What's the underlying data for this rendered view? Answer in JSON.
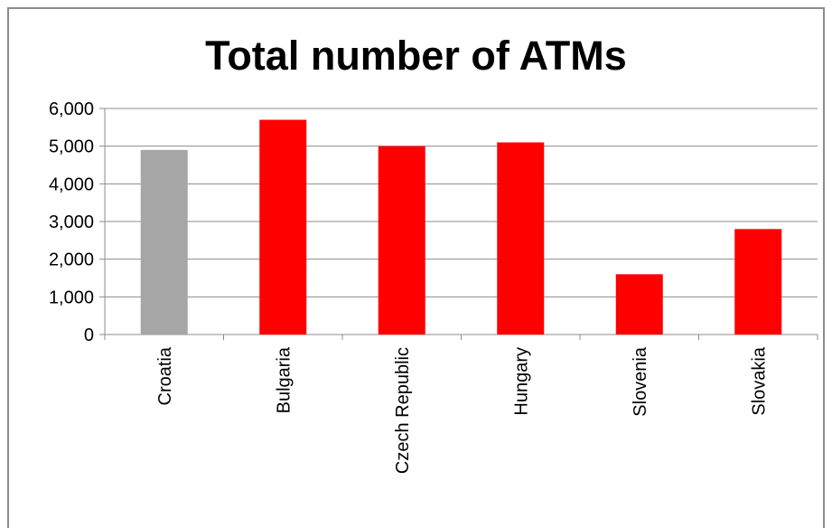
{
  "chart_data": {
    "type": "bar",
    "title": "Total number of ATMs",
    "categories": [
      "Croatia",
      "Bulgaria",
      "Czech Republic",
      "Hungary",
      "Slovenia",
      "Slovakia"
    ],
    "values": [
      4900,
      5700,
      5000,
      5100,
      1600,
      2800
    ],
    "colors": [
      "#a6a6a6",
      "#ff0000",
      "#ff0000",
      "#ff0000",
      "#ff0000",
      "#ff0000"
    ],
    "ylim": [
      0,
      6000
    ],
    "yticks": [
      0,
      1000,
      2000,
      3000,
      4000,
      5000,
      6000
    ],
    "ytick_labels": [
      "0",
      "1,000",
      "2,000",
      "3,000",
      "4,000",
      "5,000",
      "6,000"
    ],
    "grid": true,
    "xlabel": "",
    "ylabel": ""
  }
}
